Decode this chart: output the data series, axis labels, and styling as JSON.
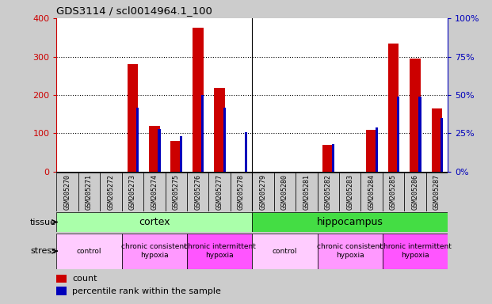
{
  "title": "GDS3114 / scl0014964.1_100",
  "samples": [
    "GSM205270",
    "GSM205271",
    "GSM205272",
    "GSM205273",
    "GSM205274",
    "GSM205275",
    "GSM205276",
    "GSM205277",
    "GSM205278",
    "GSM205279",
    "GSM205280",
    "GSM205281",
    "GSM205282",
    "GSM205283",
    "GSM205284",
    "GSM205285",
    "GSM205286",
    "GSM205287"
  ],
  "counts": [
    0,
    0,
    0,
    280,
    120,
    80,
    375,
    218,
    0,
    0,
    0,
    0,
    70,
    0,
    110,
    335,
    295,
    165
  ],
  "percentile": [
    0,
    0,
    0,
    42,
    28,
    23,
    50,
    42,
    26,
    0,
    0,
    0,
    18,
    0,
    29,
    49,
    49,
    35
  ],
  "ylim_left": [
    0,
    400
  ],
  "ylim_right": [
    0,
    100
  ],
  "yticks_left": [
    0,
    100,
    200,
    300,
    400
  ],
  "yticks_right": [
    0,
    25,
    50,
    75,
    100
  ],
  "bar_color_red": "#cc0000",
  "bar_color_blue": "#0000bb",
  "tissue_cortex_color": "#aaffaa",
  "tissue_hippo_color": "#44dd44",
  "stress_groups": [
    {
      "label": "control",
      "range": [
        0,
        2
      ],
      "color": "#ffccff"
    },
    {
      "label": "chronic consistent\nhypoxia",
      "range": [
        3,
        5
      ],
      "color": "#ff99ff"
    },
    {
      "label": "chronic intermittent\nhypoxia",
      "range": [
        6,
        8
      ],
      "color": "#ff55ff"
    },
    {
      "label": "control",
      "range": [
        9,
        11
      ],
      "color": "#ffccff"
    },
    {
      "label": "chronic consistent\nhypoxia",
      "range": [
        12,
        14
      ],
      "color": "#ff99ff"
    },
    {
      "label": "chronic intermittent\nhypoxia",
      "range": [
        15,
        17
      ],
      "color": "#ff55ff"
    }
  ],
  "fig_bg": "#cccccc",
  "plot_bg": "#ffffff",
  "xlabel_bg": "#cccccc"
}
